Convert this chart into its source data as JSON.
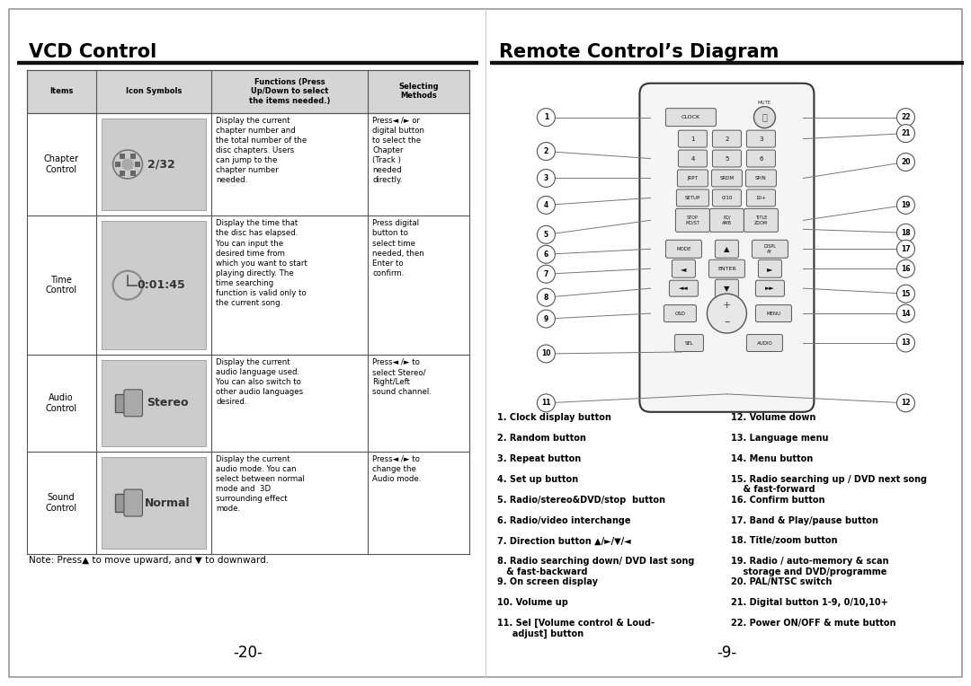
{
  "page_bg": "#ffffff",
  "border_color": "#aaaaaa",
  "left_panel": {
    "title": "VCD Control",
    "table": {
      "headers": [
        "Items",
        "Icon Symbols",
        "Functions (Press\nUp/Down to select\nthe items needed.)",
        "Selecting\nMethods"
      ],
      "rows": [
        {
          "item": "Chapter\nControl",
          "icon_text": "2/32",
          "func": "Display the current\nchapter number and\nthe total number of the\ndisc chapters. Users\ncan jump to the\nchapter number\nneeded.",
          "select": "Press◄ /► or\ndigital button\nto select the\nChapter\n(Track )\nneeded\ndirectly."
        },
        {
          "item": "Time\nControl",
          "icon_text": "0:01:45",
          "func": "Display the time that\nthe disc has elapsed.\nYou can input the\ndesired time from\nwhich you want to start\nplaying directly. The\ntime searching\nfunction is valid only to\nthe current song.",
          "select": "Press digital\nbutton to\nselect time\nneeded, then\nEnter to\nconfirm."
        },
        {
          "item": "Audio\nControl",
          "icon_text": "Stereo",
          "func": "Display the current\naudio language used.\nYou can also switch to\nother audio languages\ndesired.",
          "select": "Press◄ /► to\nselect Stereo/\nRight/Left\nsound channel."
        },
        {
          "item": "Sound\nControl",
          "icon_text": "Normal",
          "func": "Display the current\naudio mode. You can\nselect between normal\nmode and  3D\nsurrounding effect\nmode.",
          "select": "Press◄ /► to\nchange the\nAudio mode."
        }
      ]
    },
    "note": "Note: Press▲ to move upward, and ▼ to downward.",
    "page_num": "-20-"
  },
  "right_panel": {
    "title": "Remote Control’s Diagram",
    "legend_left": [
      "1. Clock display button",
      "2. Random button",
      "3. Repeat button",
      "4. Set up button",
      "5. Radio/stereo&DVD/stop  button",
      "6. Radio/video interchange",
      "7. Direction button ▲/►/▼/◄",
      "8. Radio searching down/ DVD last song\n   & fast-backward",
      "9. On screen display",
      "10. Volume up",
      "11. Sel [Volume control & Loud-\n     adjust] button"
    ],
    "legend_right": [
      "12. Volume down",
      "13. Language menu",
      "14. Menu button",
      "15. Radio searching up / DVD next song\n    & fast-forward",
      "16. Confirm button",
      "17. Band & Play/pause button",
      "18. Title/zoom button",
      "19. Radio / auto-memory & scan\n    storage and DVD/programme",
      "20. PAL/NTSC switch",
      "21. Digital button 1-9, 0/10,10+",
      "22. Power ON/OFF & mute button"
    ],
    "page_num": "-9-"
  }
}
